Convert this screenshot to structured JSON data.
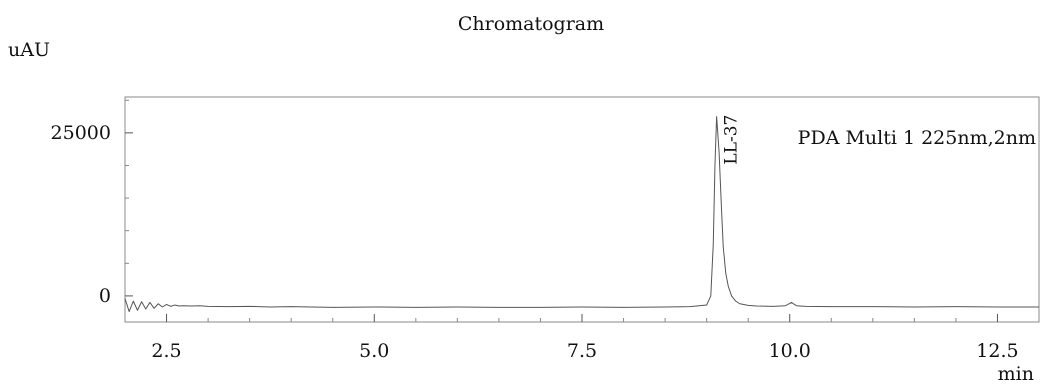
{
  "chart_data": {
    "type": "line",
    "title": "Chromatogram",
    "ylabel": "uAU",
    "xlabel": "min",
    "xlim": [
      2.0,
      13.0
    ],
    "ylim": [
      -4000,
      30500
    ],
    "x_ticks": [
      {
        "value": 2.5,
        "label": "2.5"
      },
      {
        "value": 5.0,
        "label": "5.0"
      },
      {
        "value": 7.5,
        "label": "7.5"
      },
      {
        "value": 10.0,
        "label": "10.0"
      },
      {
        "value": 12.5,
        "label": "12.5"
      }
    ],
    "y_ticks": [
      {
        "value": 0,
        "label": "0"
      },
      {
        "value": 25000,
        "label": "25000"
      }
    ],
    "series": [
      {
        "name": "PDA Multi 1 225nm,2nm",
        "color": "#555555",
        "x": [
          2.0,
          2.05,
          2.1,
          2.15,
          2.2,
          2.25,
          2.3,
          2.35,
          2.4,
          2.45,
          2.5,
          2.55,
          2.6,
          2.65,
          2.7,
          2.8,
          2.9,
          3.0,
          3.25,
          3.5,
          3.75,
          4.0,
          4.5,
          5.0,
          5.5,
          6.0,
          6.5,
          7.0,
          7.5,
          8.0,
          8.5,
          8.8,
          9.0,
          9.05,
          9.08,
          9.1,
          9.12,
          9.15,
          9.18,
          9.2,
          9.23,
          9.26,
          9.3,
          9.35,
          9.4,
          9.5,
          9.6,
          9.8,
          9.95,
          10.02,
          10.08,
          10.2,
          10.5,
          11.0,
          11.5,
          12.0,
          12.5,
          13.0
        ],
        "y": [
          -400,
          -2400,
          -800,
          -2200,
          -900,
          -2000,
          -1000,
          -1900,
          -1200,
          -1700,
          -1300,
          -1600,
          -1400,
          -1550,
          -1500,
          -1550,
          -1500,
          -1600,
          -1650,
          -1600,
          -1700,
          -1650,
          -1750,
          -1700,
          -1750,
          -1700,
          -1750,
          -1750,
          -1700,
          -1750,
          -1700,
          -1650,
          -1400,
          0,
          8000,
          20000,
          27500,
          22000,
          13000,
          7500,
          3500,
          1500,
          0,
          -800,
          -1200,
          -1450,
          -1550,
          -1600,
          -1500,
          -1000,
          -1500,
          -1600,
          -1650,
          -1650,
          -1700,
          -1650,
          -1700,
          -1700
        ]
      }
    ],
    "annotations": [
      {
        "text": "LL-37",
        "x": 9.12,
        "y": 27500
      }
    ],
    "legend": {
      "text": "PDA Multi 1 225nm,2nm",
      "position": "top-right"
    },
    "grid": false
  }
}
